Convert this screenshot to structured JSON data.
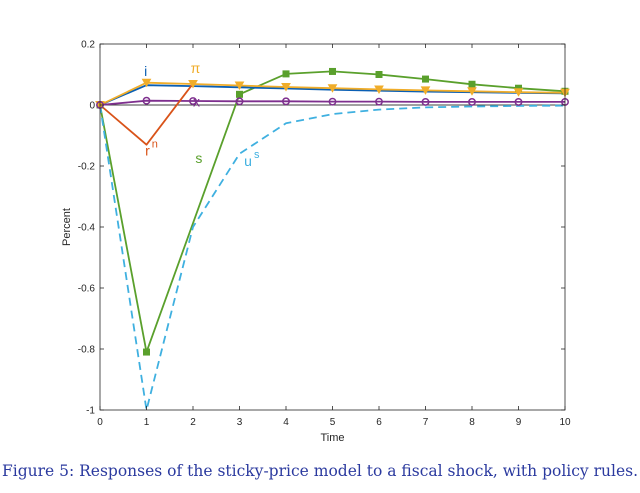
{
  "caption": "Figure 5: Responses of the sticky-price model to a fiscal shock, with policy rules.",
  "chart_data": {
    "type": "line",
    "title": "",
    "xlabel": "Time",
    "ylabel": "Percent",
    "xlim": [
      0,
      10
    ],
    "ylim": [
      -1,
      0.2
    ],
    "xticks": [
      0,
      1,
      2,
      3,
      4,
      5,
      6,
      7,
      8,
      9,
      10
    ],
    "yticks": [
      -1,
      -0.8,
      -0.6,
      -0.4,
      -0.2,
      0,
      0.2
    ],
    "ytick_labels": [
      "-1",
      "-0.8",
      "-0.6",
      "-0.4",
      "-0.2",
      "0",
      "0.2"
    ],
    "grid": false,
    "series": [
      {
        "name": "s",
        "color": "#5aa02c",
        "marker": "square",
        "dash": "solid",
        "x": [
          0,
          1,
          3,
          4,
          5,
          6,
          7,
          8,
          9,
          10
        ],
        "values": [
          0,
          -0.81,
          0.035,
          0.102,
          0.11,
          0.1,
          0.085,
          0.068,
          0.055,
          0.045
        ],
        "label_xy": [
          2.05,
          -0.19
        ]
      },
      {
        "name": "u",
        "superscript": "s",
        "color": "#3fb0e0",
        "marker": "none",
        "dash": "dashed",
        "x": [
          0,
          1,
          2,
          3,
          4,
          5,
          6,
          7,
          8,
          9,
          10
        ],
        "values": [
          0,
          -1.0,
          -0.4,
          -0.16,
          -0.06,
          -0.03,
          -0.015,
          -0.008,
          -0.005,
          -0.003,
          -0.002
        ],
        "label_xy": [
          3.1,
          -0.2
        ]
      },
      {
        "name": "i",
        "color": "#0a5fb4",
        "marker": "none",
        "dash": "solid",
        "x": [
          0,
          1,
          2,
          3,
          4,
          5,
          6,
          7,
          8,
          9,
          10
        ],
        "values": [
          0,
          0.065,
          0.062,
          0.058,
          0.054,
          0.05,
          0.047,
          0.044,
          0.042,
          0.04,
          0.038
        ],
        "label_xy": [
          0.95,
          0.095
        ]
      },
      {
        "name": "π",
        "color": "#f0ad2a",
        "marker": "triangle-down",
        "dash": "solid",
        "x": [
          0,
          1,
          2,
          3,
          4,
          5,
          6,
          7,
          8,
          9,
          10
        ],
        "values": [
          0,
          0.073,
          0.069,
          0.064,
          0.059,
          0.055,
          0.051,
          0.048,
          0.045,
          0.042,
          0.04
        ],
        "label_xy": [
          1.95,
          0.105
        ]
      },
      {
        "name": "x",
        "color": "#7e2f8e",
        "marker": "circle",
        "dash": "solid",
        "x": [
          0,
          1,
          2,
          3,
          4,
          5,
          6,
          7,
          8,
          9,
          10
        ],
        "values": [
          0,
          0.014,
          0.013,
          0.012,
          0.012,
          0.011,
          0.011,
          0.01,
          0.01,
          0.01,
          0.01
        ],
        "label_xy": [
          2.0,
          -0.005
        ]
      },
      {
        "name": "r",
        "superscript": "n",
        "color": "#d95319",
        "marker": "none",
        "dash": "solid",
        "x": [
          0,
          1,
          2
        ],
        "values": [
          0,
          -0.13,
          0.07
        ],
        "label_xy": [
          0.97,
          -0.165
        ]
      }
    ]
  }
}
